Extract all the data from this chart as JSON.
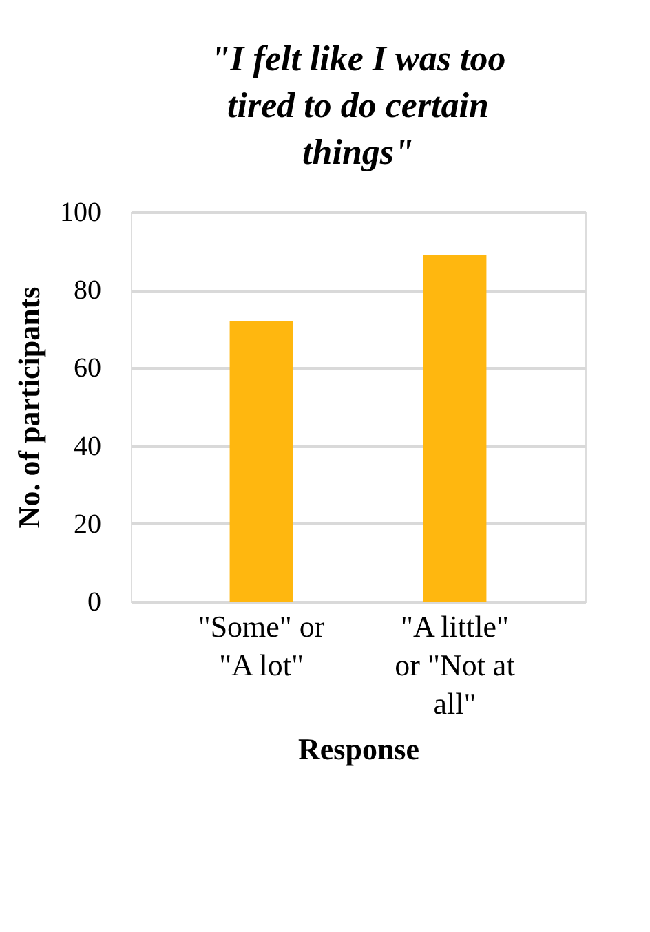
{
  "chart_data": {
    "type": "bar",
    "title": "\"I felt like I was too tired to do certain things\"",
    "categories": [
      "\"Some\" or \"A lot\"",
      "\"A little\" or \"Not at all\""
    ],
    "values": [
      72,
      89
    ],
    "color": "#ffb70f",
    "xlabel": "Response",
    "ylabel": "No. of participants",
    "ylim": [
      0,
      100
    ],
    "yticks": [
      0,
      20,
      40,
      60,
      80,
      100
    ],
    "grid": "y"
  }
}
